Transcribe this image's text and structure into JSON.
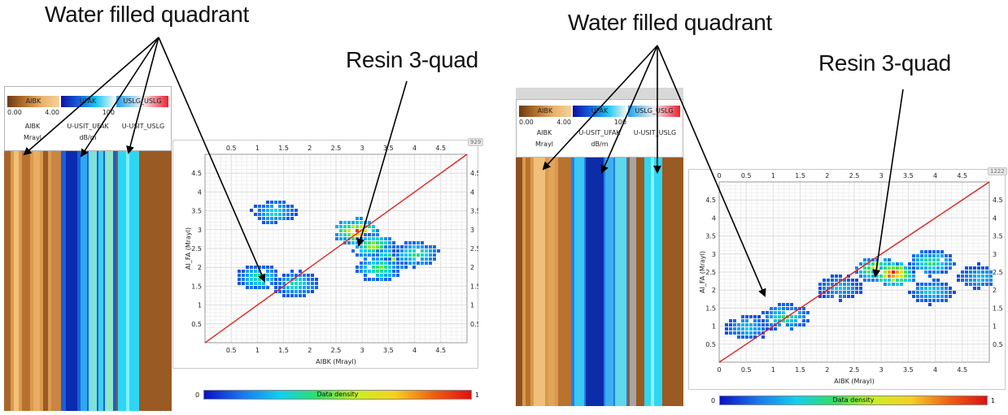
{
  "callouts": {
    "left_water": "Water filled quadrant",
    "left_resin": "Resin 3-quad",
    "right_water": "Water filled quadrant",
    "right_resin": "Resin 3-quad"
  },
  "log_header": {
    "abk_title": "AIBK",
    "abk_min": "0.00",
    "abk_max": "4.00",
    "ufak_title": "UFAK",
    "ufak_max": "100",
    "uslg_title": "USLG_USLG",
    "col1_name": "AIBK",
    "col2_name": "U-USIT_UFAK",
    "col3_name": "U-USIT_USLG",
    "col1_unit": "Mrayl",
    "col2_unit": "dB/m",
    "col3_unit": ""
  },
  "colorbar": {
    "min": "0",
    "max": "1",
    "label": "Data density"
  },
  "badges": {
    "left": "929",
    "right": "1222"
  },
  "colors": {
    "diagonal": "#e02020",
    "grid": "#e3e3e3"
  },
  "chart_data": [
    {
      "type": "heatmap",
      "title": "",
      "xlabel": "AIBK (Mrayl)",
      "ylabel": "AI_FA (Mrayl)",
      "xlim": [
        0,
        5
      ],
      "ylim": [
        0,
        5
      ],
      "x_ticks": [
        "0.5",
        "1",
        "1.5",
        "2",
        "2.5",
        "3",
        "3.5",
        "4",
        "4.5"
      ],
      "y_ticks": [
        "0.5",
        "1",
        "1.5",
        "2",
        "2.5",
        "3",
        "3.5",
        "4",
        "4.5"
      ],
      "reference_line": {
        "label": "",
        "equation": "y = x"
      },
      "clusters": [
        {
          "x": 1.0,
          "y": 1.8,
          "density": 0.5
        },
        {
          "x": 1.7,
          "y": 1.6,
          "density": 0.45
        },
        {
          "x": 1.3,
          "y": 3.5,
          "density": 0.4
        },
        {
          "x": 2.85,
          "y": 3.0,
          "density": 0.95
        },
        {
          "x": 3.2,
          "y": 2.6,
          "density": 0.7
        },
        {
          "x": 3.6,
          "y": 2.3,
          "density": 0.65
        },
        {
          "x": 4.0,
          "y": 2.4,
          "density": 0.55
        },
        {
          "x": 3.3,
          "y": 2.0,
          "density": 0.6
        }
      ]
    },
    {
      "type": "heatmap",
      "title": "",
      "xlabel": "AIBK (Mrayl)",
      "ylabel": "AI_FA (Mrayl)",
      "xlim": [
        0,
        5
      ],
      "ylim": [
        0,
        5
      ],
      "x_ticks": [
        "0",
        "0.5",
        "1",
        "1.5",
        "2",
        "2.5",
        "3",
        "3.5",
        "4",
        "4.5"
      ],
      "y_ticks": [
        "0.5",
        "1",
        "1.5",
        "2",
        "2.5",
        "3",
        "3.5",
        "4",
        "4.5"
      ],
      "reference_line": {
        "label": "",
        "equation": "y = x"
      },
      "clusters": [
        {
          "x": 0.5,
          "y": 1.0,
          "density": 0.35
        },
        {
          "x": 1.2,
          "y": 1.3,
          "density": 0.55
        },
        {
          "x": 2.2,
          "y": 2.1,
          "density": 0.35
        },
        {
          "x": 2.9,
          "y": 2.6,
          "density": 0.85
        },
        {
          "x": 3.2,
          "y": 2.5,
          "density": 1.0
        },
        {
          "x": 3.9,
          "y": 2.8,
          "density": 0.55
        },
        {
          "x": 3.9,
          "y": 2.0,
          "density": 0.4
        },
        {
          "x": 4.8,
          "y": 2.4,
          "density": 0.35
        }
      ]
    }
  ]
}
